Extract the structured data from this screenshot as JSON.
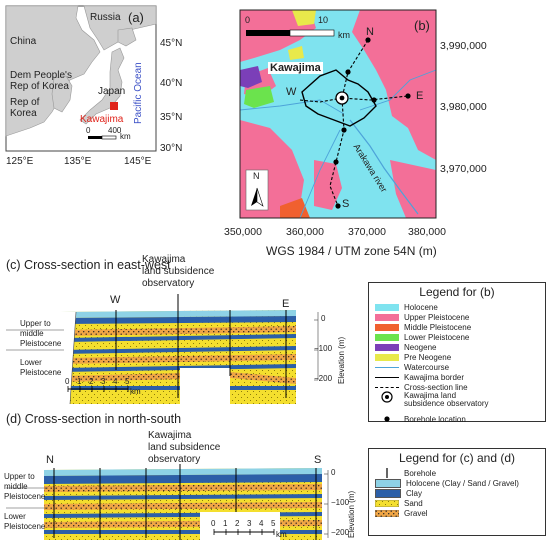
{
  "panel_a": {
    "label": "(a)",
    "countries": [
      "Russia",
      "China",
      "Dem People's",
      "Rep of Korea",
      "Rep of",
      "Korea",
      "Japan"
    ],
    "ocean": "Pacific Ocean",
    "site": "Kawajima",
    "scale": {
      "zero": "0",
      "value": "400",
      "unit": "km"
    },
    "lat_ticks": [
      "45°N",
      "40°N",
      "35°N",
      "30°N"
    ],
    "lon_ticks": [
      "125°E",
      "135°E",
      "145°E"
    ],
    "site_color": "#e0241b"
  },
  "panel_b": {
    "label": "(b)",
    "site": "Kawajima",
    "points": [
      "N",
      "W",
      "E",
      "S"
    ],
    "river": "Arakawa river",
    "north": "N",
    "scale": {
      "zero": "0",
      "value": "10",
      "unit": "km"
    },
    "y_ticks": [
      "3,990,000",
      "3,980,000",
      "3,970,000"
    ],
    "x_ticks": [
      "350,000",
      "360,000",
      "370,000",
      "380,000"
    ],
    "xlabel": "WGS 1984 / UTM zone 54N (m)"
  },
  "panel_c": {
    "title": "(c) Cross-section in east-west",
    "observatory": [
      "Kawajima",
      "land subsidence",
      "observatory"
    ],
    "ends": [
      "W",
      "E"
    ],
    "units": [
      "Upper to",
      "middle",
      "Pleistocene",
      "Lower",
      "Pleistocene"
    ],
    "scale": {
      "ticks": [
        "0",
        "1",
        "2",
        "3",
        "4",
        "5"
      ],
      "unit": "km"
    },
    "elev_ticks": [
      "0",
      "−100",
      "−200"
    ],
    "elev_label": "Elevation (m)"
  },
  "panel_d": {
    "title": "(d) Cross-section in north-south",
    "observatory": [
      "Kawajima",
      "land subsidence",
      "observatory"
    ],
    "ends": [
      "N",
      "S"
    ],
    "units": [
      "Upper to",
      "middle",
      "Pleistocene",
      "Lower",
      "Pleistocene"
    ],
    "scale": {
      "ticks": [
        "0",
        "1",
        "2",
        "3",
        "4",
        "5"
      ],
      "unit": "km"
    },
    "elev_ticks": [
      "0",
      "−100",
      "−200"
    ],
    "elev_label": "Elevation (m)"
  },
  "legend_b": {
    "title": "Legend for (b)",
    "items": [
      {
        "label": "Holocene",
        "color": "#7fe3ef"
      },
      {
        "label": "Upper Pleistocene",
        "color": "#f36f98"
      },
      {
        "label": "Middle Pleistocene",
        "color": "#f0602f"
      },
      {
        "label": "Lower Pleistocene",
        "color": "#6be34d"
      },
      {
        "label": "Neogene",
        "color": "#7b3fb8"
      },
      {
        "label": "Pre Neogene",
        "color": "#e8e94b"
      },
      {
        "label": "Watercourse"
      },
      {
        "label": "Kawajima border"
      },
      {
        "label": "Cross-section line"
      },
      {
        "label": "Kawajima land subsidence observatory"
      },
      {
        "label": "Borehole location"
      }
    ]
  },
  "legend_cd": {
    "title": "Legend for (c) and (d)",
    "items": [
      {
        "label": "Borehole"
      },
      {
        "label": "Holocene (Clay / Sand / Gravel)",
        "color": "#8ed2e6"
      },
      {
        "label": "Clay",
        "color": "#2c5fa8"
      },
      {
        "label": "Sand",
        "color": "#f4df2e"
      },
      {
        "label": "Gravel",
        "color": "#f0a545"
      }
    ]
  }
}
